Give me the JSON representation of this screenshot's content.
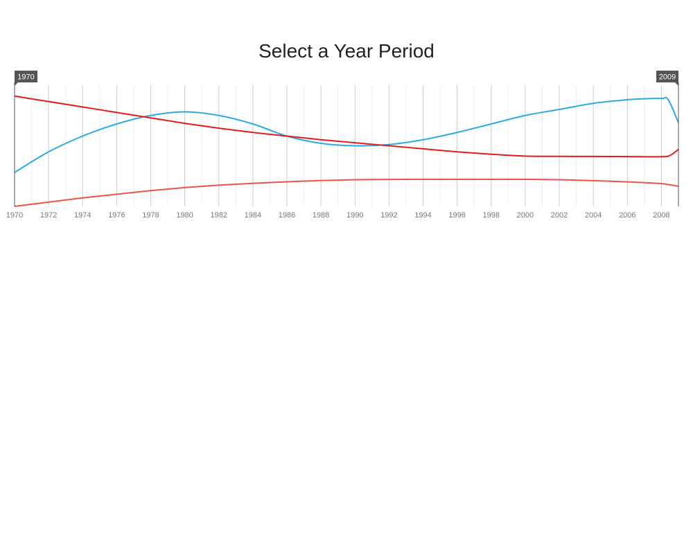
{
  "page": {
    "title": "Select a Year Period"
  },
  "range_selector": {
    "start_label": "1970",
    "end_label": "2009"
  },
  "chart_data": {
    "type": "line",
    "title": "Select a Year Period",
    "xlabel": "",
    "ylabel": "",
    "xlim": [
      1970,
      2009
    ],
    "ylim": [
      0,
      100
    ],
    "x_ticks": [
      "1970",
      "1972",
      "1974",
      "1976",
      "1978",
      "1980",
      "1982",
      "1984",
      "1986",
      "1988",
      "1990",
      "1992",
      "1994",
      "1996",
      "1998",
      "2000",
      "2002",
      "2004",
      "2006",
      "2008"
    ],
    "grid": "vertical",
    "series": [
      {
        "color": "#29abe2",
        "points": [
          [
            1970,
            28
          ],
          [
            1972,
            45
          ],
          [
            1974,
            58
          ],
          [
            1976,
            68
          ],
          [
            1978,
            75
          ],
          [
            1980,
            78
          ],
          [
            1982,
            75
          ],
          [
            1984,
            68
          ],
          [
            1986,
            58
          ],
          [
            1988,
            52
          ],
          [
            1990,
            50
          ],
          [
            1992,
            51
          ],
          [
            1994,
            55
          ],
          [
            1996,
            61
          ],
          [
            1998,
            68
          ],
          [
            2000,
            75
          ],
          [
            2002,
            80
          ],
          [
            2004,
            85
          ],
          [
            2006,
            88
          ],
          [
            2007,
            88.8
          ],
          [
            2008,
            89
          ],
          [
            2008.4,
            88
          ],
          [
            2009,
            69
          ]
        ]
      },
      {
        "color": "#e41a1c",
        "points": [
          [
            1970,
            91
          ],
          [
            1972,
            86.5
          ],
          [
            1974,
            82
          ],
          [
            1976,
            77.5
          ],
          [
            1978,
            73
          ],
          [
            1980,
            68.5
          ],
          [
            1982,
            64.5
          ],
          [
            1984,
            61
          ],
          [
            1986,
            58
          ],
          [
            1988,
            55
          ],
          [
            1990,
            52.5
          ],
          [
            1992,
            50
          ],
          [
            1994,
            47.5
          ],
          [
            1996,
            45
          ],
          [
            1998,
            43
          ],
          [
            2000,
            41.5
          ],
          [
            2002,
            41.3
          ],
          [
            2004,
            41.2
          ],
          [
            2006,
            41.1
          ],
          [
            2008,
            41
          ],
          [
            2008.5,
            42
          ],
          [
            2009,
            47
          ]
        ]
      },
      {
        "color": "#e8534a",
        "points": [
          [
            1970,
            0
          ],
          [
            1972,
            3.5
          ],
          [
            1974,
            7
          ],
          [
            1976,
            10
          ],
          [
            1978,
            13
          ],
          [
            1980,
            15.5
          ],
          [
            1982,
            17.5
          ],
          [
            1984,
            19
          ],
          [
            1986,
            20.3
          ],
          [
            1988,
            21.3
          ],
          [
            1990,
            22
          ],
          [
            1992,
            22.2
          ],
          [
            1994,
            22.3
          ],
          [
            1996,
            22.3
          ],
          [
            1998,
            22.3
          ],
          [
            2000,
            22.3
          ],
          [
            2002,
            22
          ],
          [
            2004,
            21.2
          ],
          [
            2006,
            20.2
          ],
          [
            2008,
            18.8
          ],
          [
            2009,
            16.5
          ]
        ]
      }
    ]
  }
}
